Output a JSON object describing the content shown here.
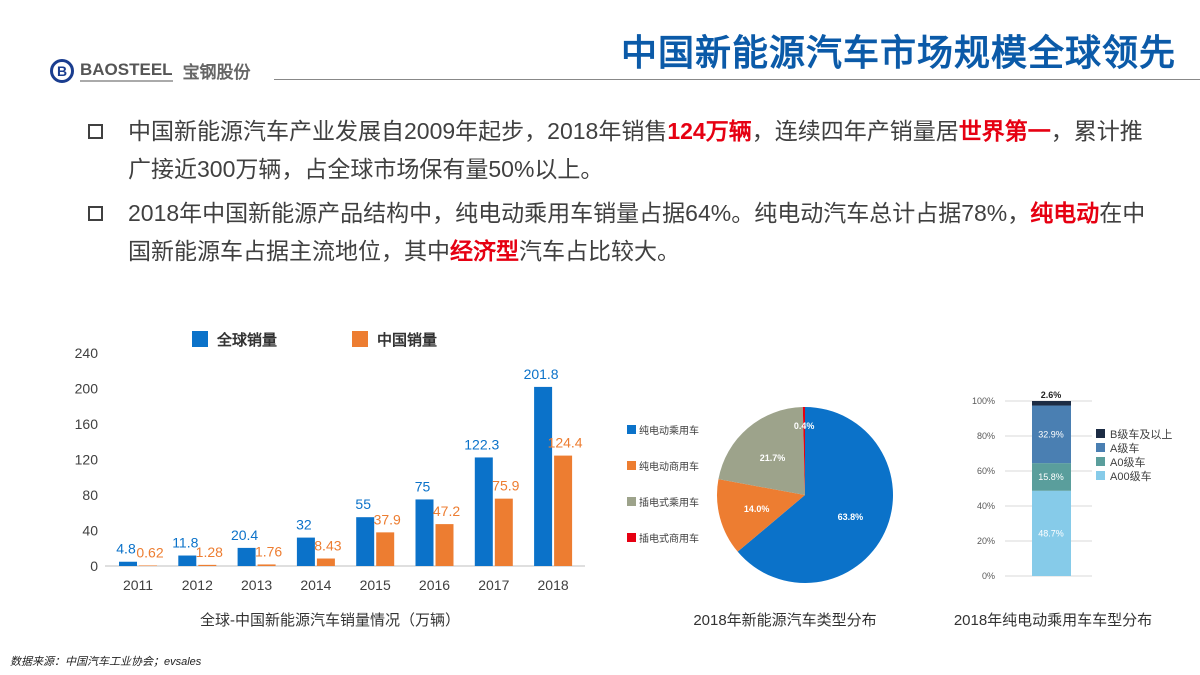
{
  "header": {
    "title": "中国新能源汽车市场规模全球领先",
    "logo_en": "BAOSTEEL",
    "logo_cn": "宝钢股份"
  },
  "bullets": [
    {
      "parts": [
        {
          "t": "中国新能源汽车产业发展自2009年起步，2018年销售"
        },
        {
          "t": "124万辆",
          "red": true
        },
        {
          "t": "，连续四年产销量居"
        },
        {
          "t": "世界第一",
          "red": true
        },
        {
          "t": "，累计推广接近300万辆，占全球市场保有量50%以上。"
        }
      ]
    },
    {
      "parts": [
        {
          "t": "2018年中国新能源产品结构中，纯电动乘用车销量占据64%。纯电动汽车总计占据78%，"
        },
        {
          "t": "纯电动",
          "red": true
        },
        {
          "t": "在中国新能源车占据主流地位，其中"
        },
        {
          "t": "经济型",
          "red": true
        },
        {
          "t": "汽车占比较大。"
        }
      ]
    }
  ],
  "chart_data": [
    {
      "type": "bar",
      "title": "全球-中国新能源汽车销量情况（万辆）",
      "categories": [
        "2011",
        "2012",
        "2013",
        "2014",
        "2015",
        "2016",
        "2017",
        "2018"
      ],
      "series": [
        {
          "name": "全球销量",
          "color": "#0b72c9",
          "values": [
            4.8,
            11.8,
            20.4,
            32,
            55,
            75,
            122.3,
            201.8
          ]
        },
        {
          "name": "中国销量",
          "color": "#ed7d31",
          "values": [
            0.62,
            1.28,
            1.76,
            8.43,
            37.9,
            47.2,
            75.9,
            124.4
          ]
        }
      ],
      "ylim": [
        0,
        240
      ],
      "yticks": [
        "0",
        "40",
        "80",
        "120",
        "160",
        "200",
        "240"
      ],
      "grid": false,
      "legend": "top"
    },
    {
      "type": "pie",
      "title": "2018年新能源汽车类型分布",
      "labels": [
        "纯电动乘用车",
        "纯电动商用车",
        "插电式乘用车",
        "插电式商用车"
      ],
      "values": [
        63.8,
        14.0,
        21.7,
        0.4
      ],
      "value_labels": [
        "63.8%",
        "14.0%",
        "21.7%",
        "0.4%"
      ],
      "colors": [
        "#0b72c9",
        "#ed7d31",
        "#9da38b",
        "#e60012"
      ],
      "legend": "left"
    },
    {
      "type": "bar",
      "stacked": true,
      "title": "2018年纯电动乘用车车型分布",
      "categories": [
        ""
      ],
      "series": [
        {
          "name": "A00级车",
          "value": 48.7,
          "label": "48.7%",
          "color": "#86cbe9"
        },
        {
          "name": "A0级车",
          "value": 15.8,
          "label": "15.8%",
          "color": "#5a9e9c"
        },
        {
          "name": "A级车",
          "value": 32.9,
          "label": "32.9%",
          "color": "#4a7fb2"
        },
        {
          "name": "B级车及以上",
          "value": 2.6,
          "label": "2.6%",
          "color": "#1c2c44"
        }
      ],
      "legend_order": [
        "B级车及以上",
        "A级车",
        "A0级车",
        "A00级车"
      ],
      "ylim": [
        0,
        100
      ],
      "yticks": [
        "0%",
        "20%",
        "40%",
        "60%",
        "80%",
        "100%"
      ],
      "legend": "right"
    }
  ],
  "source": "数据来源：中国汽车工业协会；evsales"
}
